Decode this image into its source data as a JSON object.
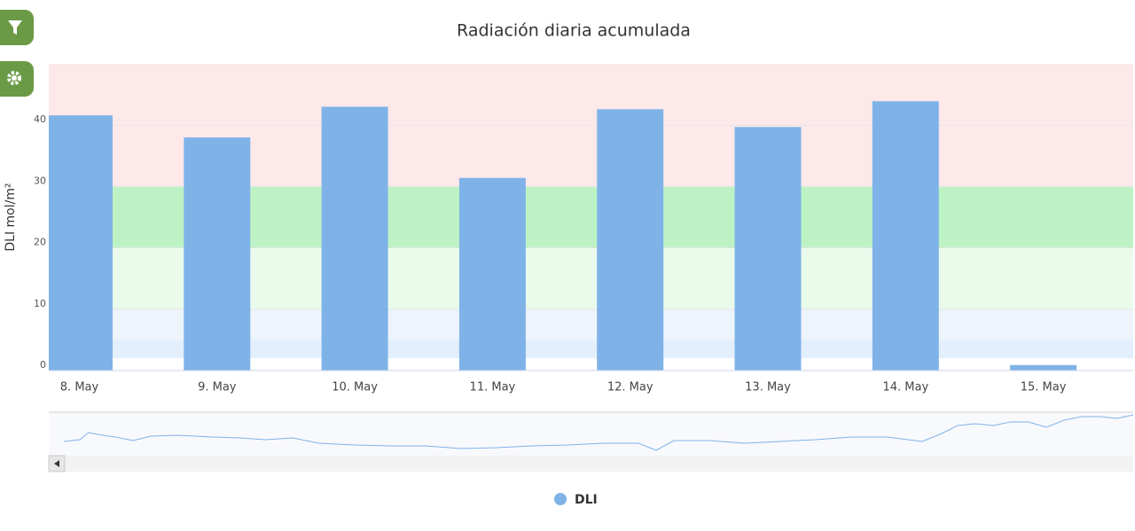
{
  "chart_data": {
    "type": "bar",
    "title": "Radiación diaria acumulada",
    "y_label": "DLI mol/m²",
    "categories": [
      "8. May",
      "9. May",
      "10. May",
      "11. May",
      "12. May",
      "13. May",
      "14. May",
      "15. May"
    ],
    "series": [
      {
        "name": "DLI",
        "color": "#7fb3e8",
        "values": [
          41.6,
          38.0,
          43.0,
          31.4,
          42.6,
          39.7,
          43.9,
          0.9
        ]
      }
    ],
    "ylim": [
      0,
      50
    ],
    "yticks": [
      0,
      10,
      20,
      30,
      40
    ],
    "grid": true,
    "legend": "bottom",
    "bands": [
      {
        "from": 30,
        "to": 50,
        "color": "#fde8ea"
      },
      {
        "from": 20,
        "to": 30,
        "color": "#bdf2c4"
      },
      {
        "from": 10,
        "to": 20,
        "color": "#eafbec"
      },
      {
        "from": 5,
        "to": 10,
        "color": "#edf4fc"
      },
      {
        "from": 2,
        "to": 5,
        "color": "#e3effc"
      }
    ]
  }
}
